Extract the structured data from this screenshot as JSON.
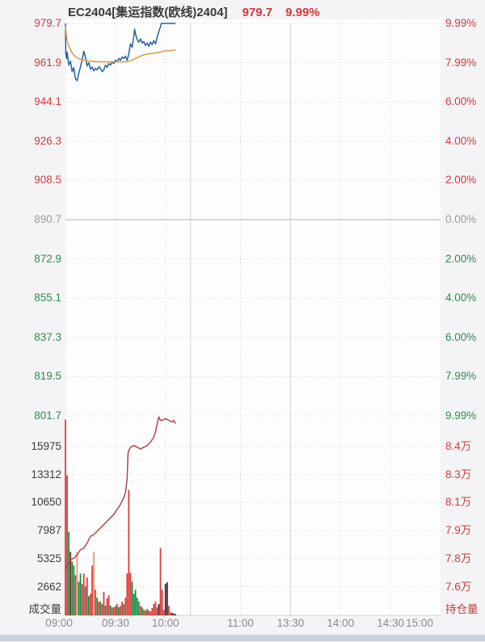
{
  "header": {
    "title": "EC2404[集运指数(欧线)2404]",
    "last_price": "979.7",
    "change_pct": "9.99%"
  },
  "colors": {
    "up_text": "#d03a3a",
    "down_text": "#2c8c4a",
    "flat_text": "#9b9b9b",
    "dark_text": "#3c3c3c",
    "time_text": "#8a8a8a",
    "plot_bg": "#fdfdfe",
    "grid_dot": "#cfcfcf",
    "grid_solid": "#b3b3b3",
    "session_line": "#d4d4d4",
    "price_line": "#2463a6",
    "avg_line": "#d99b41",
    "oi_line": "#b0474c",
    "vol_r": "#de3b3b",
    "vol_g": "#149247",
    "vol_d": "#7c2624",
    "vol_s": "#eb9b70",
    "vol_k": "#2e2e2e"
  },
  "axes": {
    "volume_title": "成交量",
    "oi_title": "持仓量"
  },
  "chart_data": [
    {
      "type": "line",
      "pane": "price",
      "title": "EC2404[集运指数(欧线)2404]",
      "prev_close": 890.7,
      "ylim": [
        801.7,
        979.7
      ],
      "y_ticks_price": [
        {
          "text": "979.7",
          "cls": "up"
        },
        {
          "text": "961.9",
          "cls": "up"
        },
        {
          "text": "944.1",
          "cls": "up"
        },
        {
          "text": "926.3",
          "cls": "up"
        },
        {
          "text": "908.5",
          "cls": "up"
        },
        {
          "text": "890.7",
          "cls": "flat"
        },
        {
          "text": "872.9",
          "cls": "down"
        },
        {
          "text": "855.1",
          "cls": "down"
        },
        {
          "text": "837.3",
          "cls": "down"
        },
        {
          "text": "819.5",
          "cls": "down"
        },
        {
          "text": "801.7",
          "cls": "down"
        }
      ],
      "y_ticks_pct": [
        {
          "text": "9.99%",
          "cls": "up"
        },
        {
          "text": "7.99%",
          "cls": "up"
        },
        {
          "text": "6.00%",
          "cls": "up"
        },
        {
          "text": "4.00%",
          "cls": "up"
        },
        {
          "text": "2.00%",
          "cls": "up"
        },
        {
          "text": "0.00%",
          "cls": "flat"
        },
        {
          "text": "2.00%",
          "cls": "down"
        },
        {
          "text": "4.00%",
          "cls": "down"
        },
        {
          "text": "6.00%",
          "cls": "down"
        },
        {
          "text": "7.99%",
          "cls": "down"
        },
        {
          "text": "9.99%",
          "cls": "down"
        }
      ],
      "x_ticks": [
        {
          "m": 0,
          "label": "09:00",
          "grid": "none",
          "shift": -8
        },
        {
          "m": 30,
          "label": "09:30",
          "grid": "dot",
          "shift": 0
        },
        {
          "m": 60,
          "label": "10:00",
          "grid": "dot",
          "shift": 0
        },
        {
          "m": 75,
          "label": "",
          "grid": "solid",
          "shift": 0
        },
        {
          "m": 105,
          "label": "11:00",
          "grid": "dot",
          "shift": 0
        },
        {
          "m": 135,
          "label": "13:30",
          "grid": "solid",
          "shift": 0
        },
        {
          "m": 165,
          "label": "14:00",
          "grid": "dot",
          "shift": 0
        },
        {
          "m": 195,
          "label": "14:30",
          "grid": "dot",
          "shift": 0
        },
        {
          "m": 225,
          "label": "15:00",
          "grid": "none",
          "shift": -26
        }
      ],
      "session_minutes": 225,
      "series": [
        {
          "name": "price",
          "color_key": "price_line",
          "points": [
            [
              0,
              979.7
            ],
            [
              0.2,
              966.0
            ],
            [
              0.7,
              963.8
            ],
            [
              1,
              966.7
            ],
            [
              2,
              960.8
            ],
            [
              3,
              962.6
            ],
            [
              4,
              957.8
            ],
            [
              5,
              959.7
            ],
            [
              6,
              954.5
            ],
            [
              7,
              953.7
            ],
            [
              8,
              957.1
            ],
            [
              9,
              960.0
            ],
            [
              10,
              963.0
            ],
            [
              11,
              967.1
            ],
            [
              12,
              964.5
            ],
            [
              13,
              960.4
            ],
            [
              14,
              961.9
            ],
            [
              15,
              958.9
            ],
            [
              16,
              960.0
            ],
            [
              17,
              958.2
            ],
            [
              18,
              959.3
            ],
            [
              19,
              958.6
            ],
            [
              20,
              960.0
            ],
            [
              21,
              959.3
            ],
            [
              22,
              957.8
            ],
            [
              23,
              958.6
            ],
            [
              24,
              960.8
            ],
            [
              25,
              959.7
            ],
            [
              26,
              961.5
            ],
            [
              27,
              960.8
            ],
            [
              28,
              962.3
            ],
            [
              29,
              961.5
            ],
            [
              30,
              963.0
            ],
            [
              31,
              962.3
            ],
            [
              32,
              963.8
            ],
            [
              33,
              963.0
            ],
            [
              34,
              964.5
            ],
            [
              35,
              963.8
            ],
            [
              36,
              964.9
            ],
            [
              37,
              963.0
            ],
            [
              38,
              966.0
            ],
            [
              39,
              970.4
            ],
            [
              40,
              968.9
            ],
            [
              41,
              974.1
            ],
            [
              41.5,
              977.1
            ],
            [
              42,
              974.9
            ],
            [
              43,
              972.3
            ],
            [
              44,
              971.2
            ],
            [
              45,
              972.7
            ],
            [
              46,
              970.8
            ],
            [
              47,
              971.5
            ],
            [
              48,
              969.7
            ],
            [
              49,
              970.8
            ],
            [
              50,
              969.3
            ],
            [
              51,
              971.2
            ],
            [
              52,
              970.1
            ],
            [
              53,
              971.9
            ],
            [
              54,
              970.4
            ],
            [
              55,
              973.4
            ],
            [
              56,
              976.0
            ],
            [
              57,
              978.2
            ],
            [
              57.5,
              979.7
            ],
            [
              66,
              979.7
            ]
          ]
        },
        {
          "name": "average",
          "color_key": "avg_line",
          "points": [
            [
              0,
              978.5
            ],
            [
              0.5,
              974.5
            ],
            [
              1,
              971.9
            ],
            [
              2,
              969.7
            ],
            [
              3,
              967.8
            ],
            [
              4,
              966.3
            ],
            [
              5,
              965.4
            ],
            [
              6,
              964.7
            ],
            [
              7,
              964.1
            ],
            [
              8,
              963.8
            ],
            [
              10,
              963.2
            ],
            [
              12,
              963.0
            ],
            [
              15,
              962.6
            ],
            [
              18,
              962.4
            ],
            [
              21,
              962.3
            ],
            [
              25,
              962.3
            ],
            [
              30,
              962.3
            ],
            [
              34,
              962.3
            ],
            [
              37,
              962.4
            ],
            [
              39,
              962.8
            ],
            [
              41,
              963.4
            ],
            [
              43,
              964.1
            ],
            [
              45,
              964.9
            ],
            [
              47,
              965.4
            ],
            [
              49,
              965.8
            ],
            [
              51,
              966.0
            ],
            [
              53,
              966.2
            ],
            [
              55,
              966.4
            ],
            [
              57,
              966.7
            ],
            [
              59,
              967.1
            ],
            [
              61,
              967.3
            ],
            [
              63,
              967.4
            ],
            [
              65,
              967.6
            ],
            [
              66,
              967.8
            ]
          ]
        }
      ]
    },
    {
      "type": "bar",
      "pane": "volume",
      "ylabel_left": "成交量",
      "ylabel_right": "持仓量",
      "vol_ticks": [
        "15975",
        "13312",
        "10650",
        "7987",
        "5325",
        "2662"
      ],
      "oi_ticks": [
        "8.4万",
        "8.3万",
        "8.1万",
        "7.9万",
        "7.8万",
        "7.6万"
      ],
      "vol_max": 18637,
      "oi_range": [
        7.44,
        8.607
      ],
      "bars": [
        [
          0,
          18600,
          "r"
        ],
        [
          1,
          13300,
          "r"
        ],
        [
          2,
          7930,
          "g"
        ],
        [
          3,
          6030,
          "d"
        ],
        [
          4,
          5110,
          "g"
        ],
        [
          5,
          4730,
          "g"
        ],
        [
          6,
          3810,
          "r"
        ],
        [
          7,
          6030,
          "s"
        ],
        [
          8,
          3200,
          "g"
        ],
        [
          9,
          3970,
          "g"
        ],
        [
          10,
          2980,
          "r"
        ],
        [
          11,
          3970,
          "r"
        ],
        [
          12,
          2750,
          "g"
        ],
        [
          13,
          3590,
          "r"
        ],
        [
          14,
          1830,
          "g"
        ],
        [
          15,
          2060,
          "r"
        ],
        [
          16,
          4730,
          "r"
        ],
        [
          17,
          6030,
          "s"
        ],
        [
          18,
          2440,
          "r"
        ],
        [
          19,
          1680,
          "g"
        ],
        [
          20,
          1300,
          "r"
        ],
        [
          21,
          1300,
          "g"
        ],
        [
          22,
          1070,
          "r"
        ],
        [
          23,
          2210,
          "r"
        ],
        [
          24,
          920,
          "g"
        ],
        [
          25,
          1600,
          "r"
        ],
        [
          26,
          1910,
          "r"
        ],
        [
          27,
          920,
          "g"
        ],
        [
          28,
          760,
          "r"
        ],
        [
          29,
          760,
          "r"
        ],
        [
          30,
          900,
          "g"
        ],
        [
          31,
          1070,
          "r"
        ],
        [
          32,
          760,
          "g"
        ],
        [
          33,
          900,
          "r"
        ],
        [
          34,
          1300,
          "r"
        ],
        [
          35,
          1070,
          "g"
        ],
        [
          36,
          1680,
          "r"
        ],
        [
          37,
          3970,
          "r"
        ],
        [
          38,
          11900,
          "r"
        ],
        [
          39,
          4040,
          "r"
        ],
        [
          40,
          3200,
          "g"
        ],
        [
          41,
          2060,
          "g"
        ],
        [
          42,
          2440,
          "g"
        ],
        [
          43,
          1680,
          "g"
        ],
        [
          44,
          1300,
          "g"
        ],
        [
          45,
          900,
          "r"
        ],
        [
          46,
          760,
          "g"
        ],
        [
          47,
          530,
          "r"
        ],
        [
          48,
          460,
          "r"
        ],
        [
          49,
          610,
          "g"
        ],
        [
          50,
          460,
          "r"
        ],
        [
          51,
          380,
          "r"
        ],
        [
          52,
          690,
          "r"
        ],
        [
          53,
          1070,
          "r"
        ],
        [
          54,
          1300,
          "r"
        ],
        [
          55,
          760,
          "r"
        ],
        [
          56,
          1070,
          "k"
        ],
        [
          57,
          6400,
          "r"
        ],
        [
          58,
          2440,
          "r"
        ],
        [
          59,
          530,
          "r"
        ],
        [
          60,
          2980,
          "k"
        ],
        [
          61,
          3130,
          "k"
        ],
        [
          62,
          900,
          "r"
        ],
        [
          63,
          300,
          "r"
        ],
        [
          64,
          230,
          "k"
        ],
        [
          65,
          150,
          "k"
        ],
        [
          66,
          120,
          "k"
        ]
      ],
      "oi_series": [
        [
          0,
          7.71
        ],
        [
          1,
          7.74
        ],
        [
          3,
          7.77
        ],
        [
          5,
          7.78
        ],
        [
          7,
          7.8
        ],
        [
          9,
          7.83
        ],
        [
          11,
          7.84
        ],
        [
          13,
          7.87
        ],
        [
          15,
          7.91
        ],
        [
          17,
          7.92
        ],
        [
          19,
          7.94
        ],
        [
          21,
          7.96
        ],
        [
          23,
          7.98
        ],
        [
          25,
          8.0
        ],
        [
          27,
          8.02
        ],
        [
          29,
          8.04
        ],
        [
          31,
          8.07
        ],
        [
          33,
          8.1
        ],
        [
          35,
          8.14
        ],
        [
          36,
          8.17
        ],
        [
          37,
          8.25
        ],
        [
          37.5,
          8.4
        ],
        [
          38,
          8.42
        ],
        [
          39,
          8.44
        ],
        [
          41,
          8.45
        ],
        [
          43,
          8.44
        ],
        [
          45,
          8.43
        ],
        [
          47,
          8.44
        ],
        [
          49,
          8.45
        ],
        [
          51,
          8.47
        ],
        [
          53,
          8.5
        ],
        [
          54,
          8.53
        ],
        [
          55,
          8.58
        ],
        [
          56,
          8.62
        ],
        [
          57,
          8.6
        ],
        [
          58,
          8.6
        ],
        [
          60,
          8.61
        ],
        [
          62,
          8.6
        ],
        [
          64,
          8.59
        ],
        [
          65,
          8.6
        ],
        [
          66,
          8.58
        ]
      ]
    }
  ]
}
